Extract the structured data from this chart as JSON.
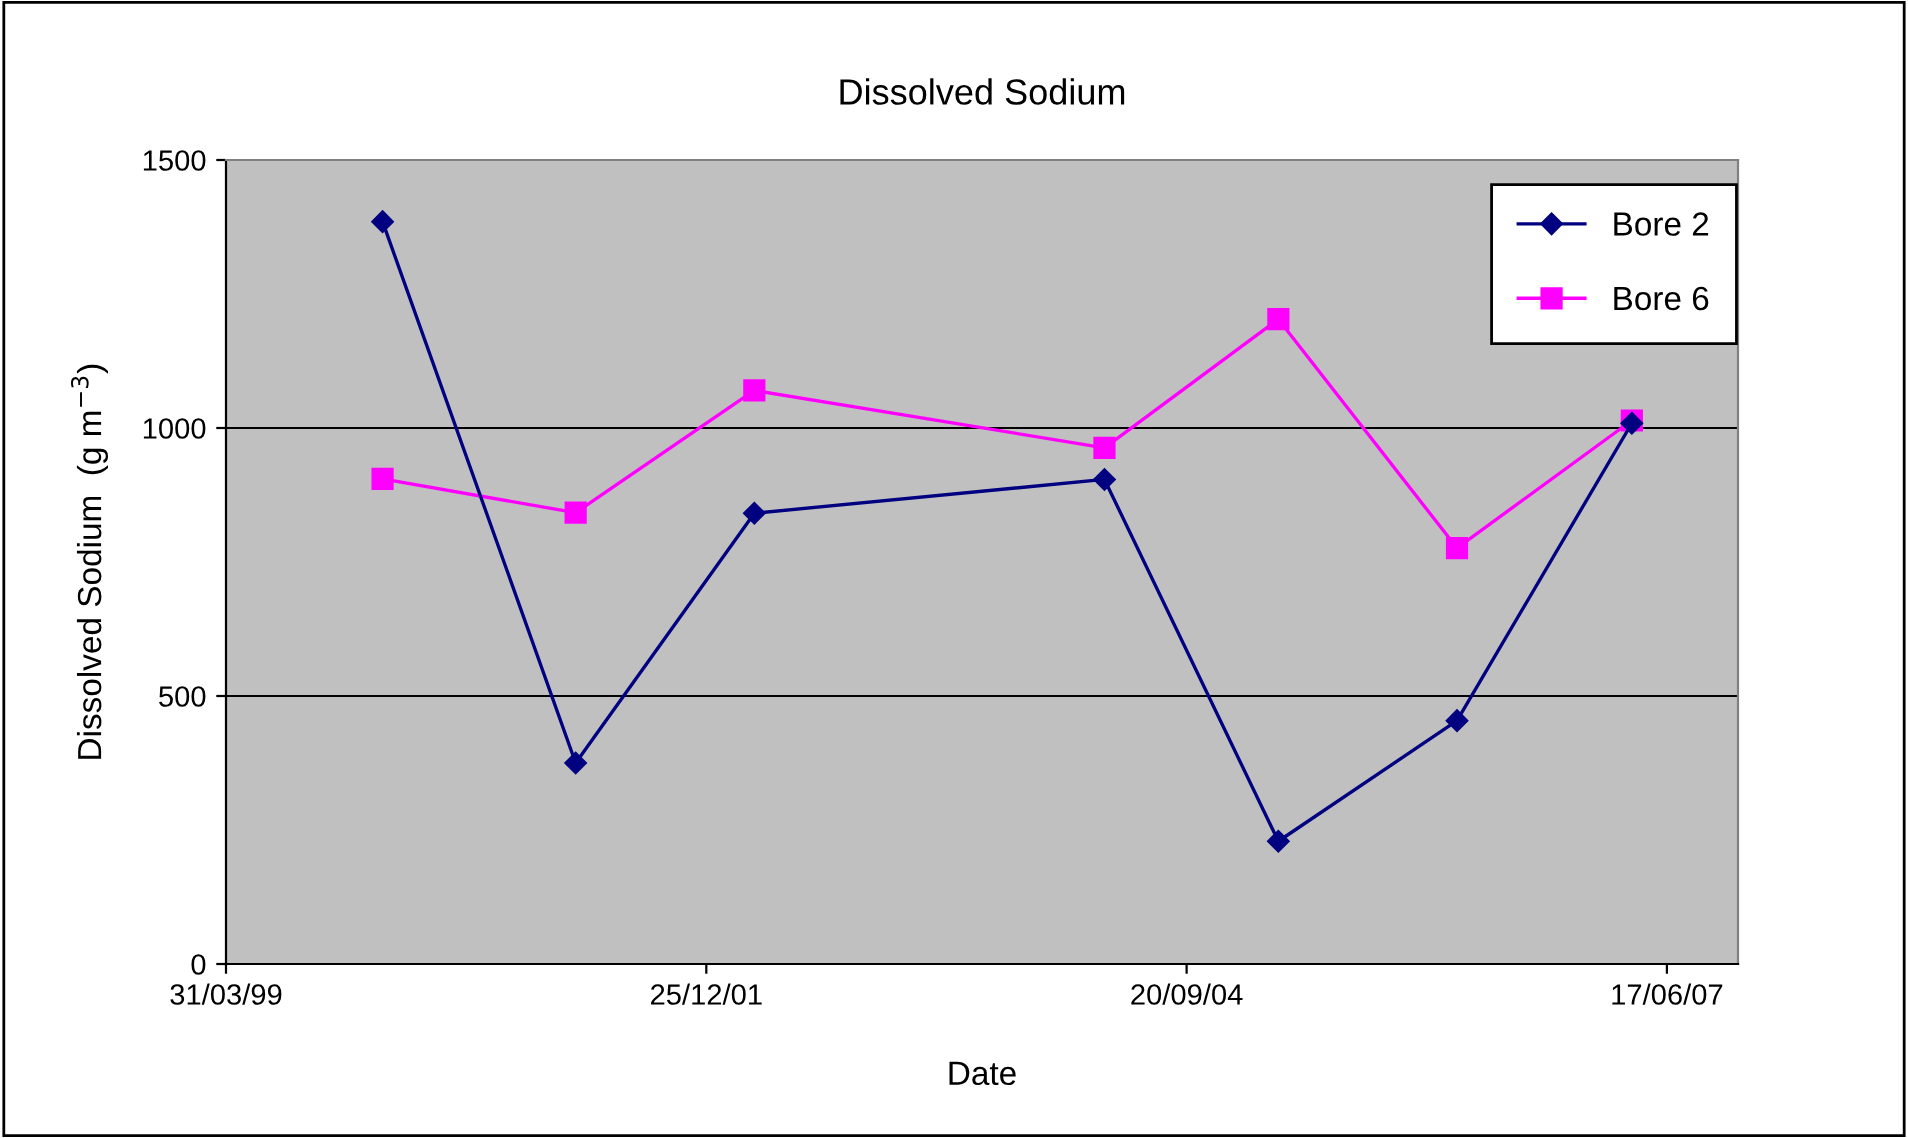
{
  "chart_data": {
    "type": "line",
    "title": "Dissolved Sodium",
    "xlabel": "Date",
    "ylabel": "Dissolved Sodium  (g m$^{−3}$)",
    "xlim": [
      "1999-03-31",
      "2007-11-12"
    ],
    "xticks": [
      {
        "value": "1999-03-31",
        "label": "31/03/99"
      },
      {
        "value": "2001-12-25",
        "label": "25/12/01"
      },
      {
        "value": "2004-09-20",
        "label": "20/09/04"
      },
      {
        "value": "2007-06-17",
        "label": "17/06/07"
      }
    ],
    "ylim": [
      0,
      1500
    ],
    "yticks": [
      0,
      500,
      1000,
      1500
    ],
    "grid": "y",
    "legend": "top right",
    "x": [
      "2000-02-20",
      "2001-03-28",
      "2002-04-04",
      "2004-04-02",
      "2005-03-30",
      "2006-04-06",
      "2007-04-05"
    ],
    "series": [
      {
        "name": "Bore 2",
        "color": "#000080",
        "marker": "diamond",
        "values": [
          1385,
          375,
          841,
          904,
          229,
          454,
          1009
        ]
      },
      {
        "name": "Bore 6",
        "color": "#ff00ff",
        "marker": "square",
        "values": [
          905,
          842,
          1070,
          963,
          1203,
          776,
          1014
        ]
      }
    ]
  }
}
